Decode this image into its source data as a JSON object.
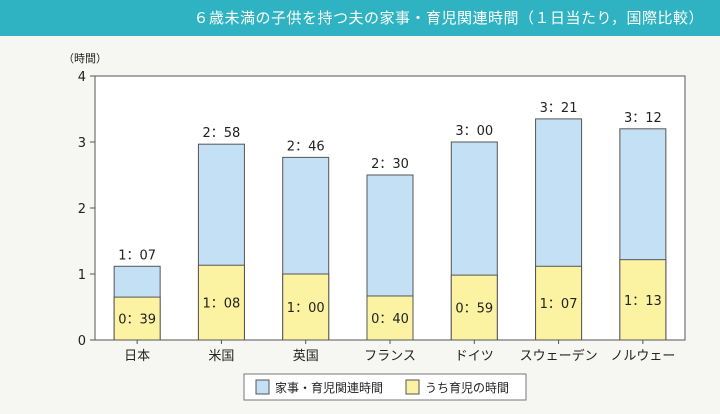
{
  "header": {
    "title": "６歳未満の子供を持つ夫の家事・育児関連時間（１日当たり，国際比較）"
  },
  "chart_data": {
    "type": "bar",
    "title": "６歳未満の子供を持つ夫の家事・育児関連時間（１日当たり，国際比較）",
    "ylabel": "（時間）",
    "ylim": [
      0,
      4
    ],
    "yticks": [
      "0",
      "1",
      "2",
      "3",
      "4"
    ],
    "categories": [
      "日本",
      "米国",
      "英国",
      "フランス",
      "ドイツ",
      "スウェーデン",
      "ノルウェー"
    ],
    "series": [
      {
        "name": "家事・育児関連時間",
        "color": "#c4e0f4",
        "values": [
          1.117,
          2.967,
          2.767,
          2.5,
          3.0,
          3.35,
          3.2
        ],
        "labels": [
          "1：07",
          "2：58",
          "2：46",
          "2：30",
          "3：00",
          "3：21",
          "3：12"
        ]
      },
      {
        "name": "うち育児の時間",
        "color": "#fbf2a2",
        "values": [
          0.65,
          1.133,
          1.0,
          0.667,
          0.983,
          1.117,
          1.217
        ],
        "labels": [
          "0：39",
          "1：08",
          "1：00",
          "0：40",
          "0：59",
          "1：07",
          "1：13"
        ]
      }
    ],
    "stacked": false,
    "legend_position": "bottom",
    "grid": false
  }
}
